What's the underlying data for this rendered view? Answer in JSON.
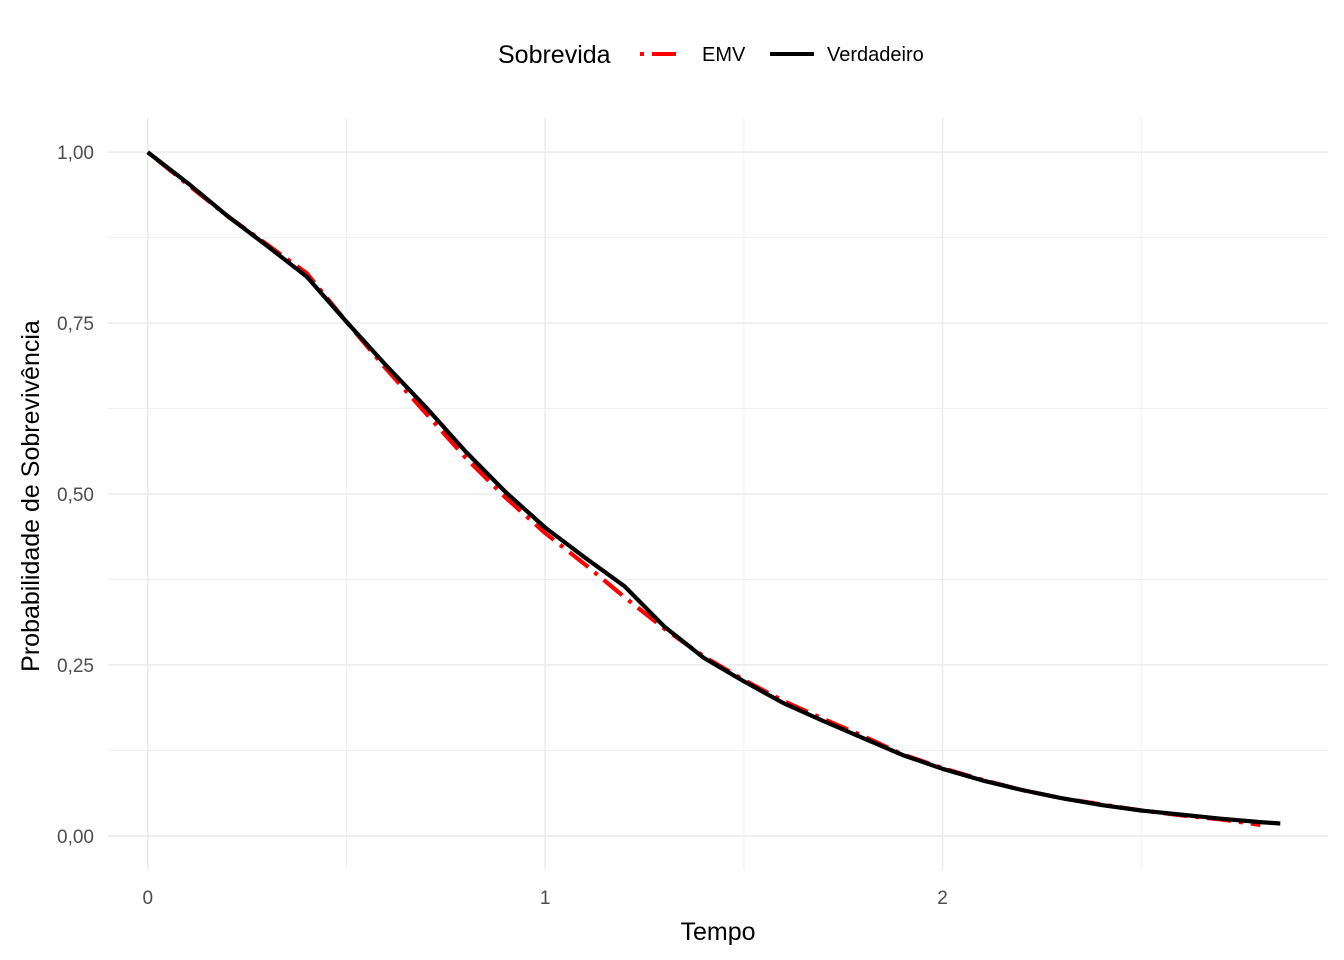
{
  "chart_data": {
    "type": "line",
    "title": "",
    "xlabel": "Tempo",
    "ylabel": "Probabilidade de Sobrevivência",
    "xlim": [
      -0.1,
      2.97
    ],
    "ylim": [
      -0.05,
      1.05
    ],
    "x_ticks": [
      0,
      1,
      2
    ],
    "x_tick_labels": [
      "0",
      "1",
      "2"
    ],
    "y_ticks": [
      0,
      0.25,
      0.5,
      0.75,
      1.0
    ],
    "y_tick_labels": [
      "0,00",
      "0,25",
      "0,50",
      "0,75",
      "1,00"
    ],
    "grid": true,
    "legend": {
      "title": "Sobrevida",
      "position": "top",
      "entries": [
        "EMV",
        "Verdadeiro"
      ]
    },
    "series": [
      {
        "name": "EMV",
        "color": "#ff0000",
        "line_style": "dotdash",
        "x": [
          0,
          0.1,
          0.2,
          0.3,
          0.4,
          0.5,
          0.6,
          0.7,
          0.8,
          0.9,
          1.0,
          1.1,
          1.2,
          1.3,
          1.4,
          1.5,
          1.6,
          1.7,
          1.8,
          1.9,
          2.0,
          2.1,
          2.2,
          2.3,
          2.4,
          2.5,
          2.6,
          2.7,
          2.8
        ],
        "y": [
          1.0,
          0.953,
          0.907,
          0.865,
          0.823,
          0.752,
          0.683,
          0.618,
          0.553,
          0.495,
          0.443,
          0.397,
          0.349,
          0.303,
          0.262,
          0.228,
          0.197,
          0.171,
          0.146,
          0.119,
          0.099,
          0.082,
          0.067,
          0.055,
          0.046,
          0.037,
          0.03,
          0.024,
          0.016
        ]
      },
      {
        "name": "Verdadeiro",
        "color": "#000000",
        "line_style": "solid",
        "x": [
          0,
          0.1,
          0.2,
          0.3,
          0.4,
          0.5,
          0.6,
          0.7,
          0.8,
          0.9,
          1.0,
          1.1,
          1.2,
          1.3,
          1.4,
          1.5,
          1.6,
          1.7,
          1.8,
          1.9,
          2.0,
          2.1,
          2.2,
          2.3,
          2.4,
          2.5,
          2.6,
          2.7,
          2.8,
          2.85
        ],
        "y": [
          1.0,
          0.955,
          0.907,
          0.863,
          0.818,
          0.752,
          0.688,
          0.627,
          0.562,
          0.503,
          0.451,
          0.407,
          0.365,
          0.306,
          0.26,
          0.226,
          0.194,
          0.168,
          0.143,
          0.118,
          0.098,
          0.081,
          0.067,
          0.055,
          0.045,
          0.037,
          0.031,
          0.025,
          0.02,
          0.018
        ]
      }
    ]
  }
}
